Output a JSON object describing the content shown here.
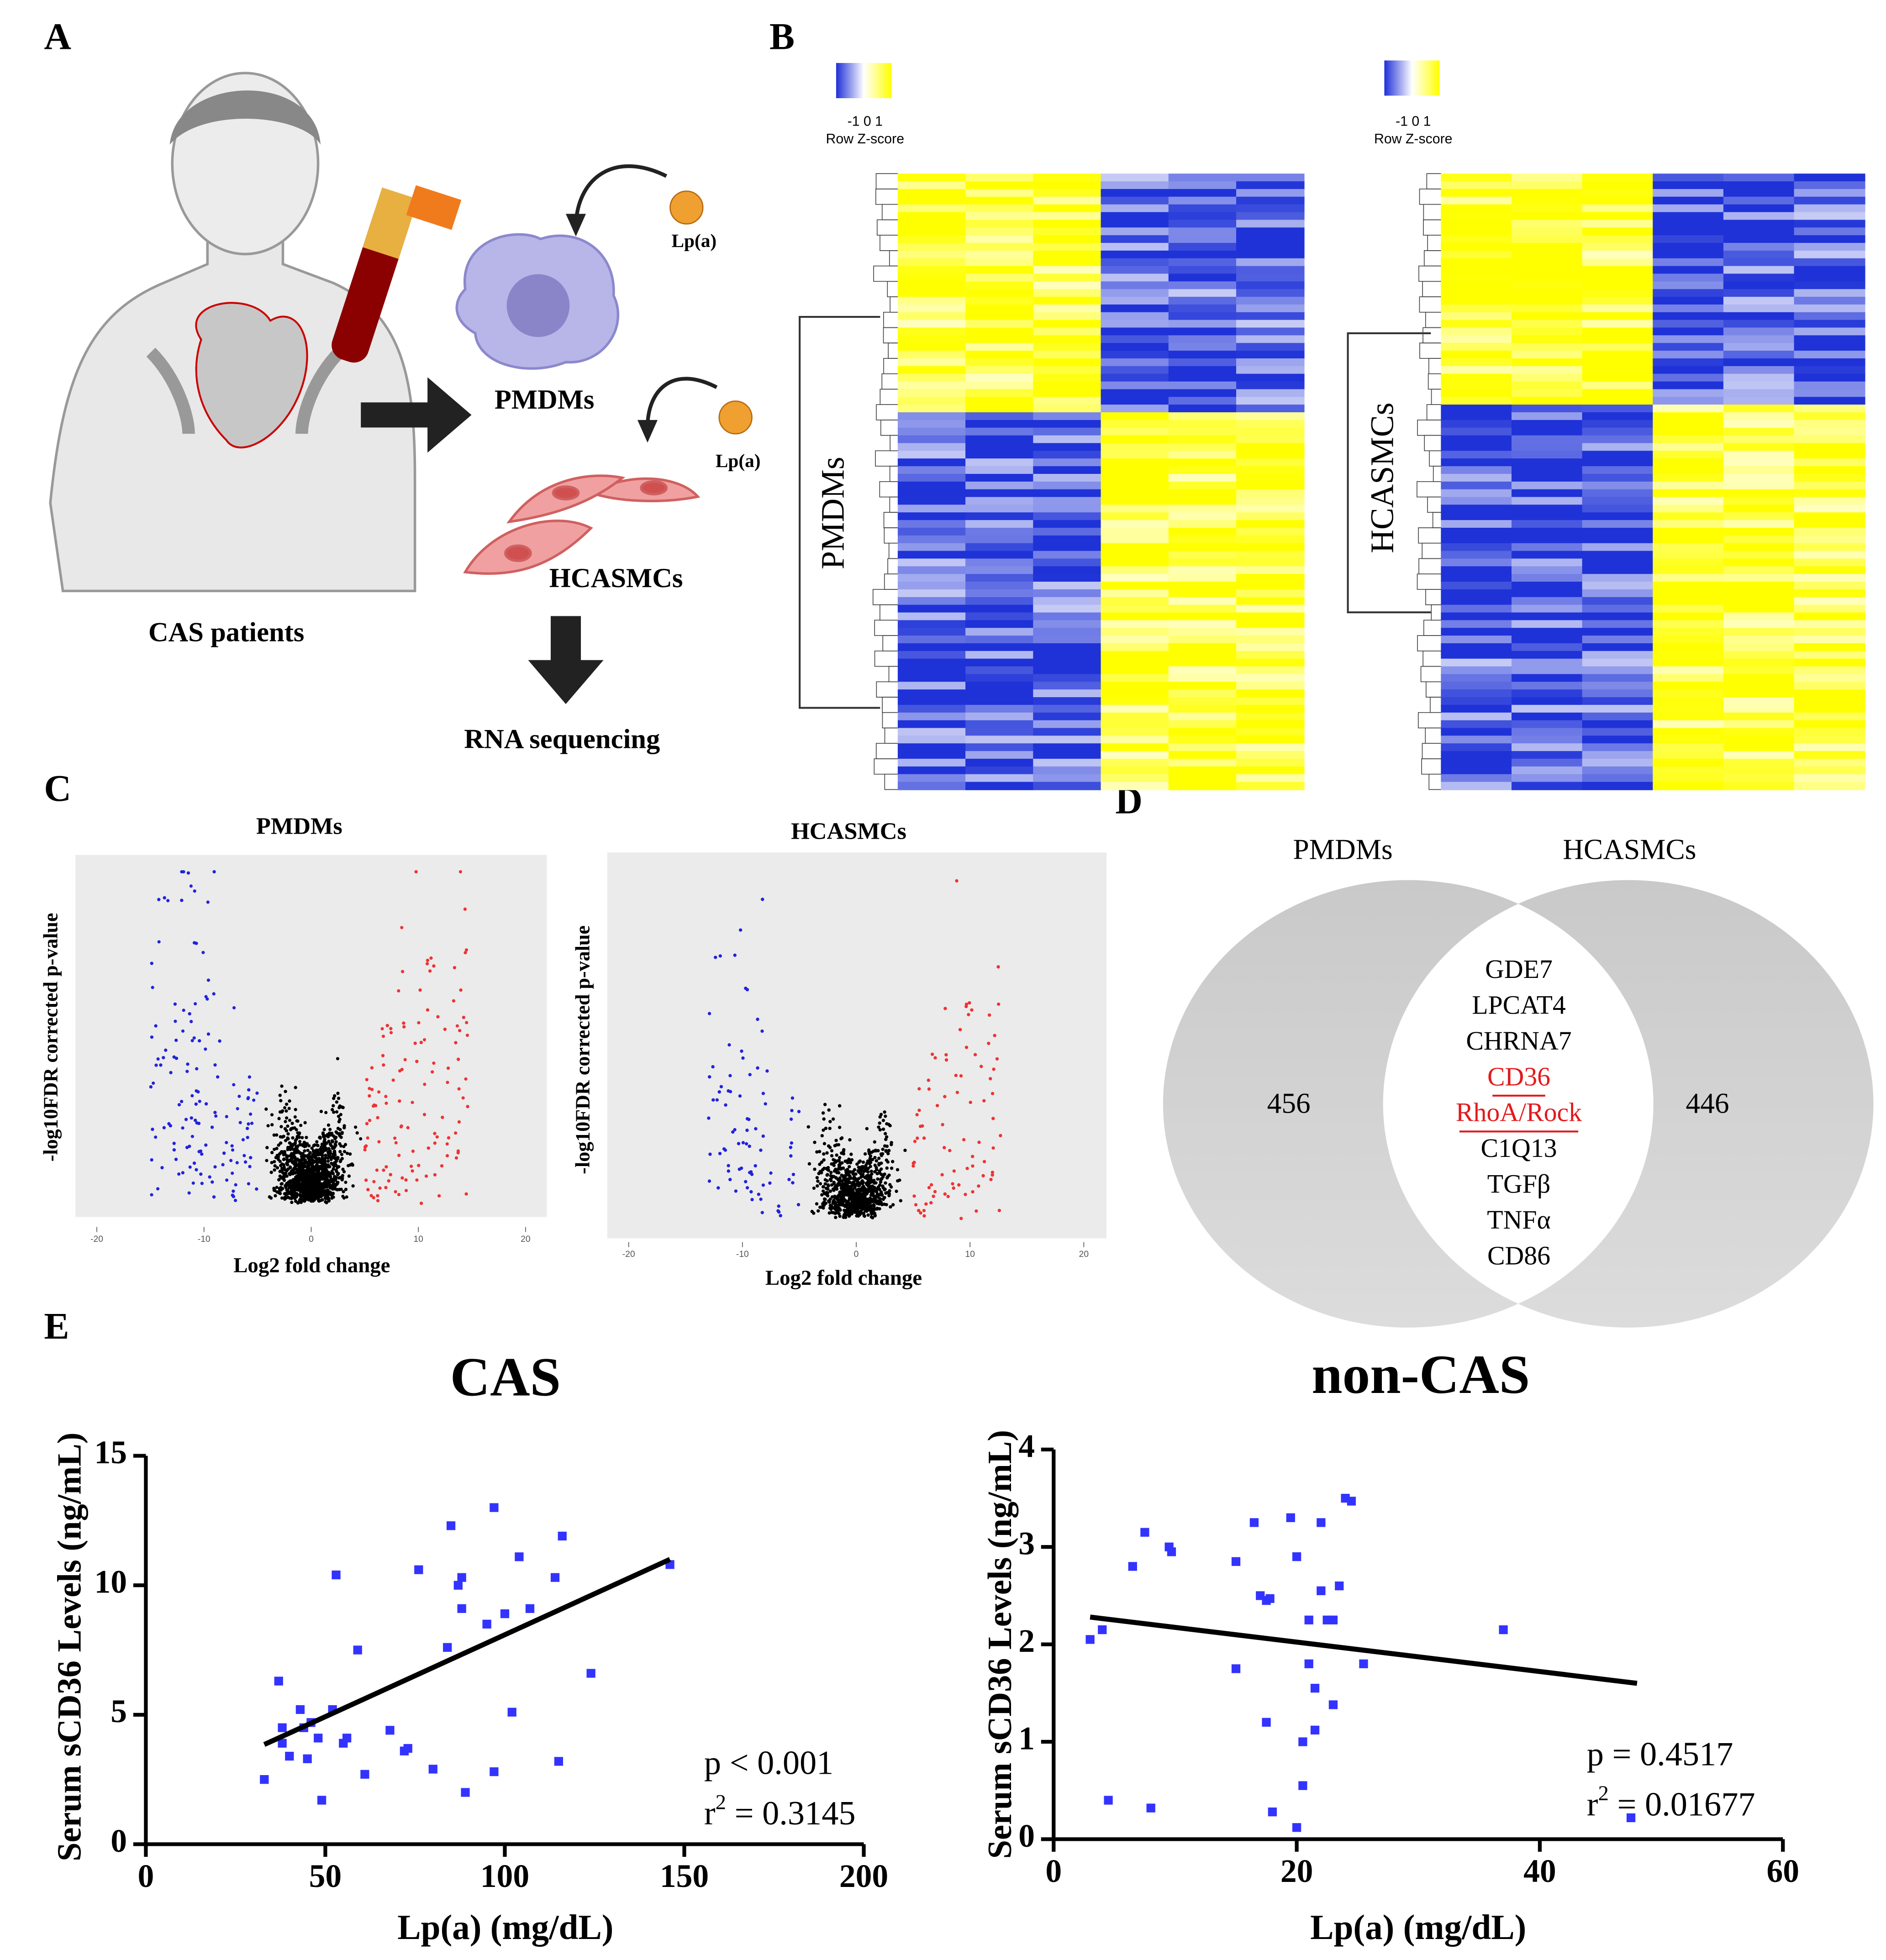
{
  "panel_labels": [
    "A",
    "B",
    "C",
    "D",
    "E"
  ],
  "schematic": {
    "lp_a": [
      "Lp(a)",
      "Lp(a)"
    ],
    "cell_types": [
      "PMDMs",
      "HCASMCs"
    ],
    "source": "CAS patients",
    "method": "RNA sequencing"
  },
  "heatmaps": [
    {
      "legend_ticks": "-1 0 1",
      "legend_title": "Row Z-score",
      "group": "PMDMs"
    },
    {
      "legend_ticks": "-1 0 1",
      "legend_title": "Row Z-score",
      "group": "HCASMCs"
    }
  ],
  "volcano": [
    {
      "title": "PMDMs",
      "y_label": "-log10FDR corrected p-value",
      "x_label": "Log2 fold change",
      "xticks": [
        -20,
        -10,
        0,
        10,
        20
      ]
    },
    {
      "title": "HCASMCs",
      "y_label": "-log10FDR corrected p-value",
      "x_label": "Log2 fold change",
      "xticks": [
        -20,
        -10,
        0,
        10,
        20
      ]
    }
  ],
  "venn": {
    "sets": [
      "PMDMs",
      "HCASMCs"
    ],
    "left_only": 456,
    "right_only": 446,
    "shared": [
      {
        "label": "GDE7"
      },
      {
        "label": "LPCAT4"
      },
      {
        "label": "CHRNA7"
      },
      {
        "label": "CD36",
        "color": "#e31a1c",
        "underline": true
      },
      {
        "label": "RhoA/Rock",
        "color": "#e31a1c",
        "underline": true
      },
      {
        "label": "C1Q13"
      },
      {
        "label": "TGFβ"
      },
      {
        "label": "TNFα"
      },
      {
        "label": "CD86"
      }
    ]
  },
  "chart_data": [
    {
      "type": "scatter",
      "title": "CAS",
      "x_label": "Lp(a) (mg/dL)",
      "y_label": "Serum sCD36 Levels (ng/mL)",
      "xlim": [
        0,
        200
      ],
      "ylim": [
        0,
        15
      ],
      "xticks": [
        0,
        50,
        100,
        150,
        200
      ],
      "yticks": [
        0,
        5,
        10,
        15
      ],
      "color": "#3333ff",
      "x": [
        33,
        37,
        38,
        38,
        40,
        43,
        44,
        45,
        46,
        48,
        49,
        52,
        53,
        55,
        56,
        59,
        61,
        68,
        72,
        73,
        76,
        80,
        84,
        85,
        87,
        88,
        88,
        89,
        95,
        97,
        97,
        100,
        102,
        104,
        107,
        114,
        116,
        115,
        124,
        146
      ],
      "values": [
        2.5,
        6.3,
        4.5,
        3.9,
        3.4,
        5.2,
        4.5,
        3.3,
        4.7,
        4.1,
        1.7,
        5.2,
        10.4,
        3.9,
        4.1,
        7.5,
        2.7,
        4.4,
        3.6,
        3.7,
        10.6,
        2.9,
        7.6,
        12.3,
        10.0,
        10.3,
        9.1,
        2.0,
        8.5,
        13.0,
        2.8,
        8.9,
        5.1,
        11.1,
        9.1,
        10.3,
        11.9,
        3.2,
        6.6,
        10.8
      ],
      "fit_line": {
        "x": [
          33,
          146
        ],
        "y": [
          3.85,
          11.0
        ]
      },
      "annotations": [
        {
          "text": "p < 0.001"
        },
        {
          "text": "r",
          "sup": "2",
          "rest": " = 0.3145"
        }
      ]
    },
    {
      "type": "scatter",
      "title": "non-CAS",
      "x_label": "Lp(a) (mg/dL)",
      "y_label": "Serum sCD36 Levels (ng/mL)",
      "xlim": [
        0,
        60
      ],
      "ylim": [
        0,
        4
      ],
      "xticks": [
        0,
        20,
        40,
        60
      ],
      "yticks": [
        0,
        1,
        2,
        3,
        4
      ],
      "color": "#3333ff",
      "x": [
        3,
        4,
        4.5,
        6.5,
        7.5,
        8,
        9.5,
        9.7,
        15,
        15,
        16.5,
        17,
        17.5,
        17.5,
        17.8,
        18,
        19.5,
        20,
        20.5,
        20.5,
        20,
        21,
        21,
        21.5,
        21.5,
        22,
        22,
        22.5,
        23,
        23,
        23.5,
        24,
        24.5,
        25.5,
        37,
        47.5
      ],
      "values": [
        2.05,
        2.15,
        0.4,
        2.8,
        3.15,
        0.32,
        3.0,
        2.95,
        2.85,
        1.75,
        3.25,
        2.5,
        2.45,
        1.2,
        2.47,
        0.28,
        3.3,
        2.9,
        1.0,
        0.55,
        0.12,
        2.25,
        1.8,
        1.55,
        1.12,
        3.25,
        2.55,
        2.25,
        2.25,
        1.38,
        2.6,
        3.5,
        3.47,
        1.8,
        2.15,
        0.22
      ],
      "fit_line": {
        "x": [
          3,
          48
        ],
        "y": [
          2.28,
          1.6
        ]
      },
      "annotations": [
        {
          "text": "p = 0.4517"
        },
        {
          "text": "r",
          "sup": "2",
          "rest": " = 0.01677"
        }
      ]
    }
  ]
}
